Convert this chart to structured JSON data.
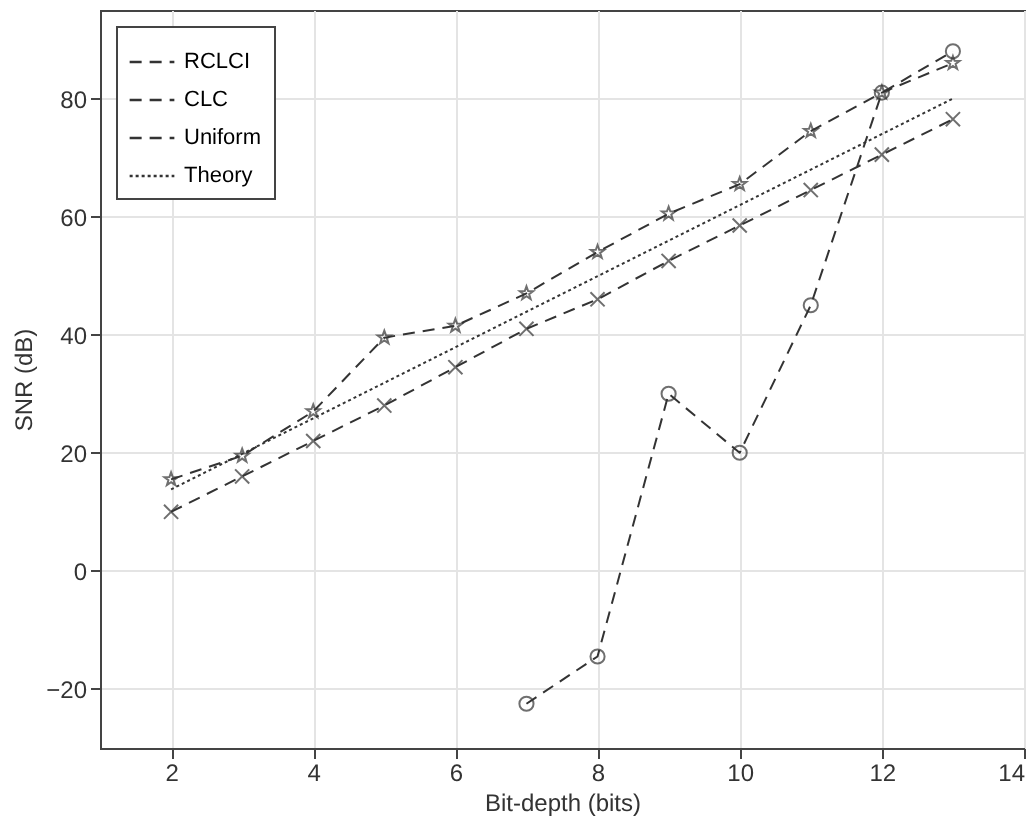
{
  "chart_data": {
    "type": "line",
    "xlabel": "Bit-depth (bits)",
    "ylabel": "SNR (dB)",
    "xlim": [
      1,
      14
    ],
    "xticks": [
      2,
      4,
      6,
      8,
      10,
      12,
      14
    ],
    "ylim": [
      -30,
      95
    ],
    "yticks": [
      -20,
      0,
      20,
      40,
      60,
      80
    ],
    "grid": true,
    "legend": "top left",
    "series": [
      {
        "name": "RCLCI",
        "color": "#333333",
        "marker": "star",
        "line_style": "dashed",
        "x": [
          2,
          3,
          4,
          5,
          6,
          7,
          8,
          9,
          10,
          11,
          12,
          13
        ],
        "values": [
          15.5,
          19.5,
          27,
          39.5,
          41.5,
          47,
          54,
          60.5,
          65.5,
          74.5,
          81,
          86
        ]
      },
      {
        "name": "CLC",
        "color": "#333333",
        "marker": "circle",
        "line_style": "dashed",
        "x": [
          7,
          8,
          9,
          10,
          11,
          12,
          13
        ],
        "values": [
          -22.5,
          -14.5,
          30,
          20,
          45,
          81,
          88
        ]
      },
      {
        "name": "Uniform",
        "color": "#333333",
        "marker": "cross",
        "line_style": "dashed",
        "x": [
          2,
          3,
          4,
          5,
          6,
          7,
          8,
          9,
          10,
          11,
          12,
          13
        ],
        "values": [
          10,
          16,
          22,
          28,
          34.5,
          41,
          46,
          52.5,
          58.5,
          64.5,
          70.5,
          76.5
        ]
      },
      {
        "name": "Theory",
        "color": "#333333",
        "marker": "none",
        "line_style": "dotted",
        "x": [
          2,
          13
        ],
        "values": [
          13.8,
          80
        ]
      }
    ]
  }
}
